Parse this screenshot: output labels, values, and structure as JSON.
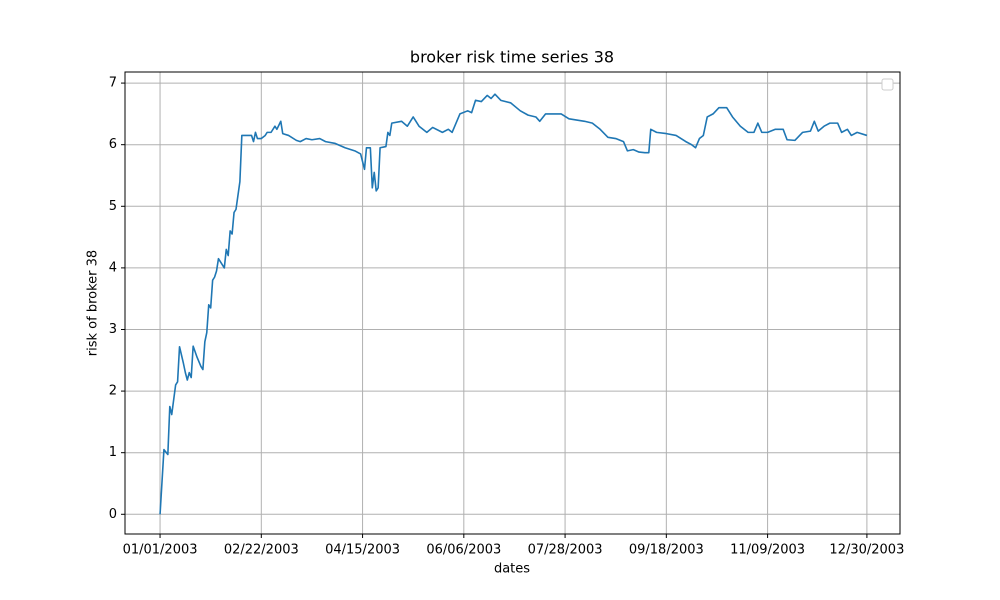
{
  "chart_data": {
    "type": "line",
    "title": "broker risk time series 38",
    "x_label": "dates",
    "y_label": "risk of broker 38",
    "x": [
      "01/01/2003",
      "01/03/2003",
      "01/05/2003",
      "01/06/2003",
      "01/07/2003",
      "01/09/2003",
      "01/10/2003",
      "01/11/2003",
      "01/13/2003",
      "01/14/2003",
      "01/15/2003",
      "01/16/2003",
      "01/17/2003",
      "01/18/2003",
      "01/20/2003",
      "01/22/2003",
      "01/23/2003",
      "01/24/2003",
      "01/25/2003",
      "01/26/2003",
      "01/27/2003",
      "01/28/2003",
      "01/29/2003",
      "01/30/2003",
      "01/31/2003",
      "02/02/2003",
      "02/03/2003",
      "02/04/2003",
      "02/05/2003",
      "02/06/2003",
      "02/07/2003",
      "02/08/2003",
      "02/09/2003",
      "02/11/2003",
      "02/12/2003",
      "02/17/2003",
      "02/18/2003",
      "02/19/2003",
      "02/20/2003",
      "02/22/2003",
      "02/24/2003",
      "02/25/2003",
      "02/27/2003",
      "03/01/2003",
      "03/02/2003",
      "03/04/2003",
      "03/05/2003",
      "03/08/2003",
      "03/12/2003",
      "03/14/2003",
      "03/17/2003",
      "03/20/2003",
      "03/24/2003",
      "03/27/2003",
      "04/01/2003",
      "04/06/2003",
      "04/11/2003",
      "04/14/2003",
      "04/16/2003",
      "04/17/2003",
      "04/19/2003",
      "04/20/2003",
      "04/21/2003",
      "04/22/2003",
      "04/23/2003",
      "04/24/2003",
      "04/27/2003",
      "04/28/2003",
      "04/29/2003",
      "04/30/2003",
      "05/05/2003",
      "05/08/2003",
      "05/11/2003",
      "05/14/2003",
      "05/18/2003",
      "05/21/2003",
      "05/26/2003",
      "05/29/2003",
      "05/31/2003",
      "06/04/2003",
      "06/08/2003",
      "06/10/2003",
      "06/12/2003",
      "06/15/2003",
      "06/18/2003",
      "06/20/2003",
      "06/22/2003",
      "06/25/2003",
      "06/30/2003",
      "07/05/2003",
      "07/09/2003",
      "07/13/2003",
      "07/15/2003",
      "07/18/2003",
      "07/22/2003",
      "07/26/2003",
      "07/30/2003",
      "08/03/2003",
      "08/07/2003",
      "08/11/2003",
      "08/15/2003",
      "08/19/2003",
      "08/23/2003",
      "08/27/2003",
      "08/29/2003",
      "09/01/2003",
      "09/04/2003",
      "09/07/2003",
      "09/09/2003",
      "09/10/2003",
      "09/13/2003",
      "09/18/2003",
      "09/23/2003",
      "09/28/2003",
      "10/01/2003",
      "10/03/2003",
      "10/05/2003",
      "10/07/2003",
      "10/09/2003",
      "10/12/2003",
      "10/15/2003",
      "10/19/2003",
      "10/22/2003",
      "10/26/2003",
      "10/30/2003",
      "11/02/2003",
      "11/04/2003",
      "11/06/2003",
      "11/09/2003",
      "11/13/2003",
      "11/17/2003",
      "11/19/2003",
      "11/23/2003",
      "11/27/2003",
      "12/01/2003",
      "12/03/2003",
      "12/05/2003",
      "12/08/2003",
      "12/11/2003",
      "12/15/2003",
      "12/17/2003",
      "12/20/2003",
      "12/22/2003",
      "12/25/2003",
      "12/30/2003"
    ],
    "series": [
      {
        "color": "#1f77b4",
        "values": [
          0.0,
          1.05,
          0.97,
          1.75,
          1.62,
          2.1,
          2.15,
          2.72,
          2.45,
          2.3,
          2.18,
          2.3,
          2.22,
          2.73,
          2.55,
          2.4,
          2.35,
          2.8,
          2.95,
          3.4,
          3.35,
          3.8,
          3.85,
          3.95,
          4.15,
          4.05,
          4.0,
          4.3,
          4.2,
          4.6,
          4.55,
          4.9,
          4.95,
          5.4,
          6.15,
          6.15,
          6.05,
          6.2,
          6.1,
          6.1,
          6.15,
          6.2,
          6.2,
          6.3,
          6.25,
          6.38,
          6.18,
          6.15,
          6.07,
          6.05,
          6.1,
          6.08,
          6.1,
          6.05,
          6.02,
          5.95,
          5.9,
          5.85,
          5.6,
          5.95,
          5.95,
          5.3,
          5.55,
          5.25,
          5.3,
          5.95,
          5.97,
          6.2,
          6.15,
          6.35,
          6.38,
          6.3,
          6.45,
          6.3,
          6.2,
          6.28,
          6.2,
          6.25,
          6.2,
          6.5,
          6.55,
          6.52,
          6.72,
          6.7,
          6.8,
          6.75,
          6.82,
          6.72,
          6.68,
          6.55,
          6.48,
          6.45,
          6.38,
          6.5,
          6.5,
          6.5,
          6.42,
          6.4,
          6.38,
          6.35,
          6.25,
          6.12,
          6.1,
          6.05,
          5.9,
          5.92,
          5.88,
          5.87,
          5.87,
          6.25,
          6.2,
          6.18,
          6.15,
          6.05,
          6.0,
          5.95,
          6.1,
          6.15,
          6.45,
          6.5,
          6.6,
          6.6,
          6.45,
          6.3,
          6.2,
          6.2,
          6.35,
          6.2,
          6.2,
          6.25,
          6.25,
          6.08,
          6.07,
          6.2,
          6.22,
          6.38,
          6.22,
          6.3,
          6.35,
          6.35,
          6.2,
          6.25,
          6.15,
          6.2,
          6.15
        ]
      }
    ],
    "xlim": [
      "12/14/2002",
      "01/16/2004"
    ],
    "xticks": [
      "01/01/2003",
      "02/22/2003",
      "04/15/2003",
      "06/06/2003",
      "07/28/2003",
      "09/18/2003",
      "11/09/2003",
      "12/30/2003"
    ],
    "ylim": [
      -0.32,
      7.18
    ],
    "yticks": [
      0,
      1,
      2,
      3,
      4,
      5,
      6,
      7
    ],
    "grid": true
  }
}
